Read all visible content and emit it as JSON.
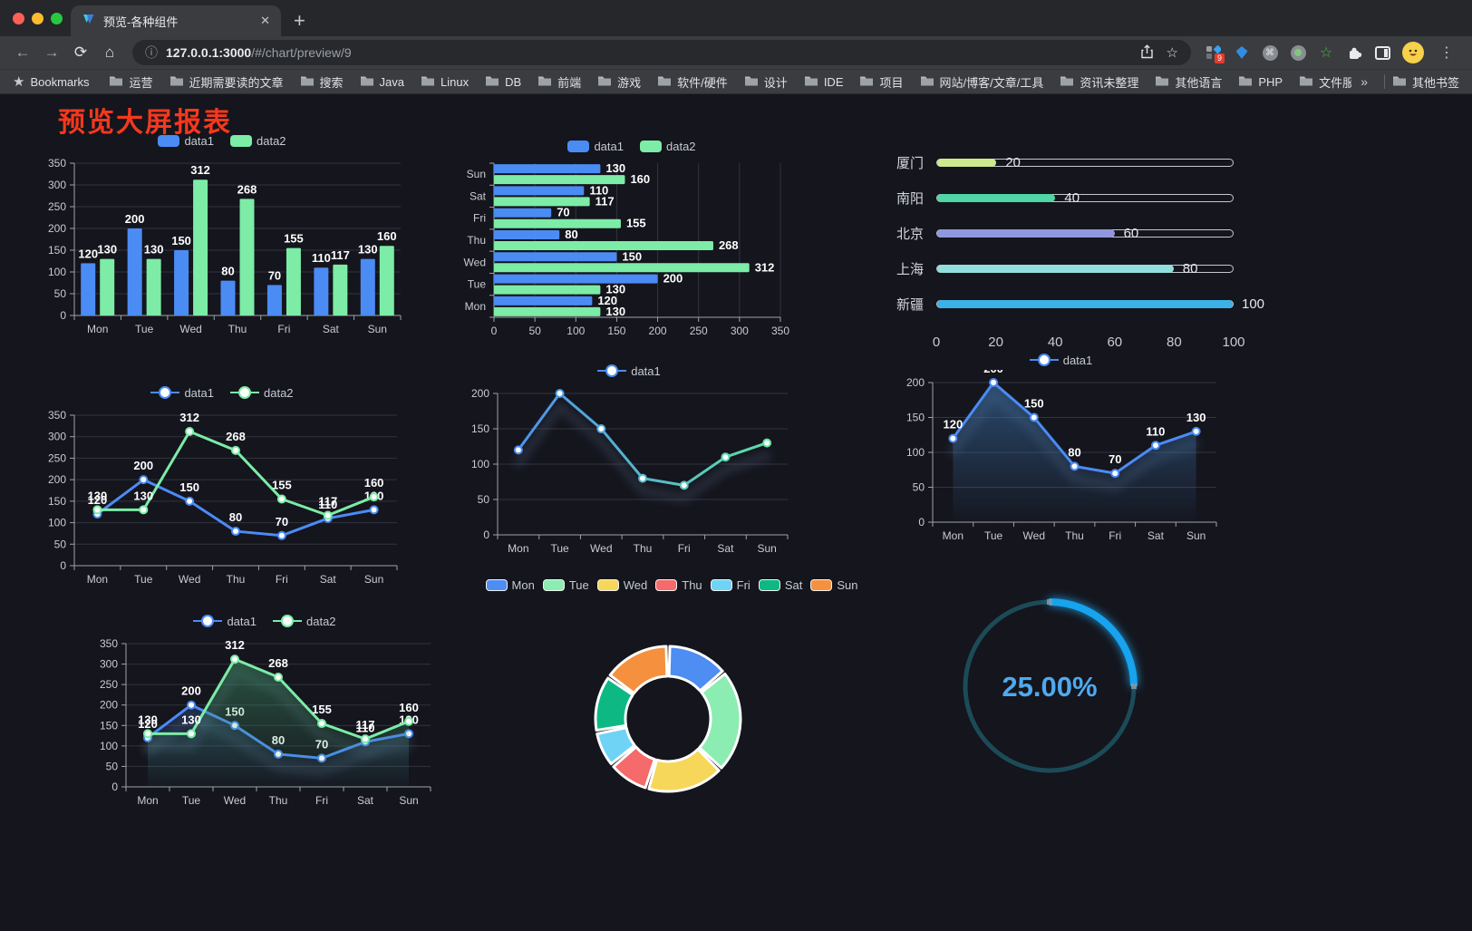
{
  "browser": {
    "window_control_colors": [
      "#FF5F57",
      "#FEBC2E",
      "#28C840"
    ],
    "tab": {
      "title": "预览-各种组件",
      "close_glyph": "✕",
      "new_tab_glyph": "+"
    },
    "nav": {
      "back_glyph": "←",
      "forward_glyph": "→",
      "reload_glyph": "⟳",
      "home_glyph": "⌂"
    },
    "address": {
      "info_glyph": "ⓘ",
      "host": "127.0.0.1:3000",
      "path": "/#/chart/preview/9"
    },
    "actions": {
      "bookmark_star_glyph": "☆",
      "extension_badge": "9",
      "menu_glyph": "⋮",
      "green_star_glyph": "☆",
      "command_glyph": "⌘"
    },
    "bookmarks_bar": {
      "star_glyph": "★",
      "label": "Bookmarks",
      "folders": [
        "运营",
        "近期需要读的文章",
        "搜索",
        "Java",
        "Linux",
        "DB",
        "前端",
        "游戏",
        "软件/硬件",
        "设计",
        "IDE",
        "项目",
        "网站/博客/文章/工具",
        "资讯未整理",
        "其他语言",
        "PHP",
        "文件服务器"
      ],
      "overflow_glyph": "»",
      "other_bookmarks": "其他书签"
    }
  },
  "page": {
    "title": "预览大屏报表",
    "title_color": "#F5381D"
  },
  "colors": {
    "accent_blue": "#4B8BF4",
    "accent_green": "#7CECA6",
    "page_bg": "#14151D"
  },
  "chart_data": [
    {
      "id": "bar_grouped",
      "type": "bar",
      "legend": "rect",
      "categories": [
        "Mon",
        "Tue",
        "Wed",
        "Thu",
        "Fri",
        "Sat",
        "Sun"
      ],
      "series": [
        {
          "name": "data1",
          "color": "#4B8BF4",
          "values": [
            120,
            200,
            150,
            80,
            70,
            110,
            130
          ]
        },
        {
          "name": "data2",
          "color": "#7CECA6",
          "values": [
            130,
            130,
            312,
            268,
            155,
            117,
            160
          ]
        }
      ],
      "ylim": [
        0,
        350
      ],
      "yticks": [
        0,
        50,
        100,
        150,
        200,
        250,
        300,
        350
      ],
      "value_labels": true
    },
    {
      "id": "bar_horizontal",
      "type": "bar-horizontal",
      "legend": "rect",
      "categories": [
        "Mon",
        "Tue",
        "Wed",
        "Thu",
        "Fri",
        "Sat",
        "Sun"
      ],
      "series": [
        {
          "name": "data1",
          "color": "#4B8BF4",
          "values": [
            120,
            200,
            150,
            80,
            70,
            110,
            130
          ]
        },
        {
          "name": "data2",
          "color": "#7CECA6",
          "values": [
            130,
            130,
            312,
            268,
            155,
            117,
            160
          ]
        }
      ],
      "xlim": [
        0,
        350
      ],
      "xticks": [
        0,
        50,
        100,
        150,
        200,
        250,
        300,
        350
      ],
      "value_labels": true
    },
    {
      "id": "progress",
      "type": "progress",
      "max": 100,
      "xticks": [
        0,
        20,
        40,
        60,
        80,
        100
      ],
      "items": [
        {
          "label": "厦门",
          "value": 20,
          "color": "#CDEA8E"
        },
        {
          "label": "南阳",
          "value": 40,
          "color": "#50D5A4"
        },
        {
          "label": "北京",
          "value": 60,
          "color": "#9197DD"
        },
        {
          "label": "上海",
          "value": 80,
          "color": "#92DFDF"
        },
        {
          "label": "新疆",
          "value": 100,
          "color": "#3CB1E5"
        }
      ]
    },
    {
      "id": "line_two",
      "type": "line",
      "legend": "marker",
      "categories": [
        "Mon",
        "Tue",
        "Wed",
        "Thu",
        "Fri",
        "Sat",
        "Sun"
      ],
      "series": [
        {
          "name": "data1",
          "color": "#4B8BF4",
          "values": [
            120,
            200,
            150,
            80,
            70,
            110,
            130
          ]
        },
        {
          "name": "data2",
          "color": "#7CECA6",
          "values": [
            130,
            130,
            312,
            268,
            155,
            117,
            160
          ]
        }
      ],
      "ylim": [
        0,
        350
      ],
      "yticks": [
        0,
        50,
        100,
        150,
        200,
        250,
        300,
        350
      ],
      "value_labels": true
    },
    {
      "id": "line_gradient",
      "type": "line",
      "legend": "marker",
      "shadow": true,
      "categories": [
        "Mon",
        "Tue",
        "Wed",
        "Thu",
        "Fri",
        "Sat",
        "Sun"
      ],
      "series": [
        {
          "name": "data1",
          "gradient": [
            "#4B8BF4",
            "#5FE3A1"
          ],
          "values": [
            120,
            200,
            150,
            80,
            70,
            110,
            130
          ]
        }
      ],
      "ylim": [
        0,
        200
      ],
      "yticks": [
        0,
        50,
        100,
        150,
        200
      ],
      "value_labels": false
    },
    {
      "id": "line_area",
      "type": "line",
      "legend": "marker",
      "shadow": true,
      "categories": [
        "Mon",
        "Tue",
        "Wed",
        "Thu",
        "Fri",
        "Sat",
        "Sun"
      ],
      "series": [
        {
          "name": "data1",
          "color": "#4B8BF4",
          "area": {
            "from": "rgba(62,120,180,0.55)",
            "to": "rgba(62,120,180,0.02)"
          },
          "values": [
            120,
            200,
            150,
            80,
            70,
            110,
            130
          ]
        }
      ],
      "ylim": [
        0,
        200
      ],
      "yticks": [
        0,
        50,
        100,
        150,
        200
      ],
      "value_labels": true
    },
    {
      "id": "line_area_two",
      "type": "line",
      "legend": "marker",
      "shadow": true,
      "categories": [
        "Mon",
        "Tue",
        "Wed",
        "Thu",
        "Fri",
        "Sat",
        "Sun"
      ],
      "series": [
        {
          "name": "data1",
          "color": "#4B8BF4",
          "area": {
            "from": "rgba(60,100,180,0.45)",
            "to": "rgba(60,100,180,0.02)"
          },
          "values": [
            120,
            200,
            150,
            80,
            70,
            110,
            130
          ]
        },
        {
          "name": "data2",
          "color": "#7CECA6",
          "area": {
            "from": "rgba(70,160,110,0.5)",
            "to": "rgba(70,160,110,0.02)"
          },
          "values": [
            130,
            130,
            312,
            268,
            155,
            117,
            160
          ]
        }
      ],
      "ylim": [
        0,
        350
      ],
      "yticks": [
        0,
        50,
        100,
        150,
        200,
        250,
        300,
        350
      ],
      "value_labels": true
    },
    {
      "id": "donut",
      "type": "pie",
      "legend": "rect-border",
      "inner_radius": 47,
      "outer_radius": 80,
      "items": [
        {
          "name": "Mon",
          "value": 120,
          "color": "#4E8DF2"
        },
        {
          "name": "Tue",
          "value": 200,
          "color": "#8CEDB2"
        },
        {
          "name": "Wed",
          "value": 150,
          "color": "#F6D759"
        },
        {
          "name": "Thu",
          "value": 80,
          "color": "#F56A6A"
        },
        {
          "name": "Fri",
          "value": 70,
          "color": "#6FD3F6"
        },
        {
          "name": "Sat",
          "value": 110,
          "color": "#0EB883"
        },
        {
          "name": "Sun",
          "value": 130,
          "color": "#F5913E"
        }
      ]
    },
    {
      "id": "gauge",
      "type": "gauge",
      "value": 25,
      "label": "25.00%",
      "color": "#17A3EE",
      "track_color": "#1C4B58",
      "text_color": "#4FA9EE"
    }
  ]
}
